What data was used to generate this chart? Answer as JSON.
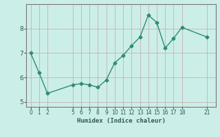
{
  "x": [
    0,
    1,
    2,
    5,
    6,
    7,
    8,
    9,
    10,
    11,
    12,
    13,
    14,
    15,
    16,
    17,
    18,
    21
  ],
  "y": [
    7.0,
    6.2,
    5.35,
    5.7,
    5.75,
    5.7,
    5.6,
    5.9,
    6.6,
    6.9,
    7.3,
    7.65,
    8.55,
    8.25,
    7.2,
    7.6,
    8.05,
    7.65
  ],
  "xlabel": "Humidex (Indice chaleur)",
  "xlim": [
    -0.5,
    22
  ],
  "ylim": [
    4.8,
    9.0
  ],
  "yticks": [
    5,
    6,
    7,
    8
  ],
  "xticks": [
    0,
    1,
    2,
    5,
    6,
    7,
    8,
    9,
    10,
    11,
    12,
    13,
    14,
    15,
    16,
    17,
    18,
    21
  ],
  "line_color": "#2e8b74",
  "marker": "D",
  "marker_size": 2.5,
  "background_color": "#cceee8",
  "grid_color": "#c8b8b8",
  "line_width": 1.0
}
